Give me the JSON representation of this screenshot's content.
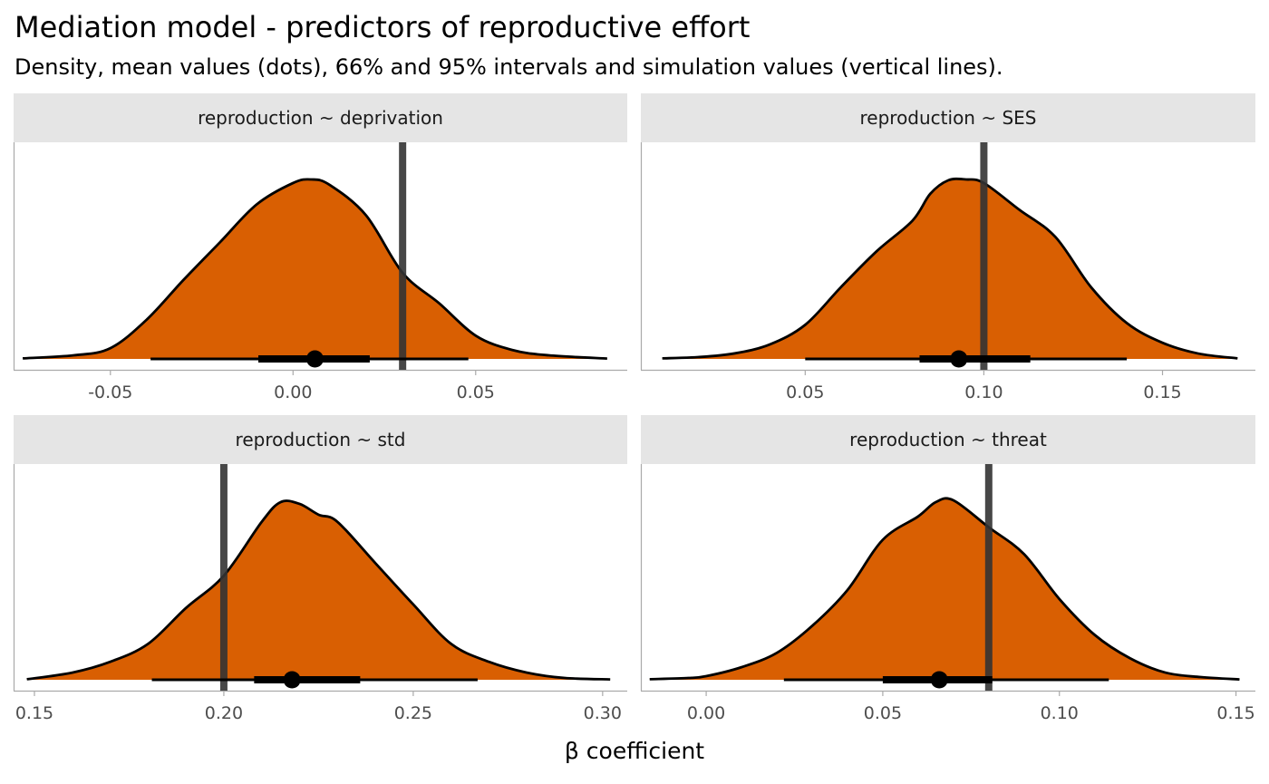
{
  "title": "Mediation model - predictors of reproductive effort",
  "subtitle": "Density, mean values (dots), 66% and 95% intervals and simulation values (vertical lines).",
  "colors": {
    "fill": "#d95f02",
    "outline": "#000000",
    "reference_line": "#333333",
    "strip_background": "#e5e5e5",
    "axis": "#aaaaaa"
  },
  "chart_data": [
    {
      "type": "density",
      "panel": "reproduction ~ deprivation",
      "xlim": [
        -0.0765,
        0.0915
      ],
      "x_ticks": [
        -0.05,
        0.0,
        0.05
      ],
      "x_tick_labels": [
        "-0.05",
        "0.00",
        "0.05"
      ],
      "density": {
        "x": [
          -0.074,
          -0.06,
          -0.05,
          -0.04,
          -0.03,
          -0.02,
          -0.01,
          0.0,
          0.005,
          0.01,
          0.02,
          0.03,
          0.04,
          0.05,
          0.06,
          0.07,
          0.086
        ],
        "y": [
          0.003,
          0.02,
          0.06,
          0.22,
          0.44,
          0.65,
          0.86,
          0.98,
          1.0,
          0.97,
          0.8,
          0.48,
          0.31,
          0.13,
          0.05,
          0.02,
          0.002
        ]
      },
      "mean": 0.006,
      "interval_66": [
        -0.0095,
        0.021
      ],
      "interval_95": [
        -0.039,
        0.048
      ],
      "simulation_value": 0.03
    },
    {
      "type": "density",
      "panel": "reproduction ~ SES",
      "xlim": [
        0.004,
        0.176
      ],
      "x_ticks": [
        0.05,
        0.1,
        0.15
      ],
      "x_tick_labels": [
        "0.05",
        "0.10",
        "0.15"
      ],
      "density": {
        "x": [
          0.01,
          0.02,
          0.03,
          0.04,
          0.05,
          0.06,
          0.07,
          0.08,
          0.085,
          0.09,
          0.095,
          0.1,
          0.11,
          0.12,
          0.13,
          0.14,
          0.15,
          0.16,
          0.171
        ],
        "y": [
          0.003,
          0.01,
          0.03,
          0.08,
          0.19,
          0.4,
          0.6,
          0.77,
          0.92,
          0.995,
          1.0,
          0.98,
          0.83,
          0.68,
          0.4,
          0.2,
          0.09,
          0.03,
          0.003
        ]
      },
      "mean": 0.093,
      "interval_66": [
        0.082,
        0.113
      ],
      "interval_95": [
        0.05,
        0.14
      ],
      "simulation_value": 0.1
    },
    {
      "type": "density",
      "panel": "reproduction ~ std",
      "xlim": [
        0.1445,
        0.3065
      ],
      "x_ticks": [
        0.15,
        0.2,
        0.25,
        0.3
      ],
      "x_tick_labels": [
        "0.15",
        "0.20",
        "0.25",
        "0.30"
      ],
      "density": {
        "x": [
          0.148,
          0.16,
          0.17,
          0.18,
          0.19,
          0.2,
          0.21,
          0.215,
          0.22,
          0.225,
          0.23,
          0.24,
          0.25,
          0.26,
          0.27,
          0.28,
          0.29,
          0.302
        ],
        "y": [
          0.003,
          0.04,
          0.1,
          0.2,
          0.4,
          0.58,
          0.88,
          0.99,
          0.98,
          0.92,
          0.88,
          0.65,
          0.42,
          0.2,
          0.1,
          0.04,
          0.01,
          0.002
        ]
      },
      "mean": 0.218,
      "interval_66": [
        0.208,
        0.236
      ],
      "interval_95": [
        0.181,
        0.267
      ],
      "simulation_value": 0.2
    },
    {
      "type": "density",
      "panel": "reproduction ~ threat",
      "xlim": [
        -0.0185,
        0.1555
      ],
      "x_ticks": [
        0.0,
        0.05,
        0.1,
        0.15
      ],
      "x_tick_labels": [
        "0.00",
        "0.05",
        "0.10",
        "0.15"
      ],
      "density": {
        "x": [
          -0.016,
          -0.005,
          0.0,
          0.01,
          0.02,
          0.03,
          0.04,
          0.05,
          0.06,
          0.065,
          0.07,
          0.08,
          0.09,
          0.1,
          0.11,
          0.12,
          0.13,
          0.14,
          0.151
        ],
        "y": [
          0.003,
          0.01,
          0.02,
          0.07,
          0.15,
          0.3,
          0.5,
          0.78,
          0.91,
          0.99,
          1.0,
          0.85,
          0.7,
          0.45,
          0.25,
          0.12,
          0.04,
          0.015,
          0.002
        ]
      },
      "mean": 0.066,
      "interval_66": [
        0.05,
        0.081
      ],
      "interval_95": [
        0.022,
        0.114
      ],
      "simulation_value": 0.08
    }
  ],
  "xlabel": "β coefficient"
}
